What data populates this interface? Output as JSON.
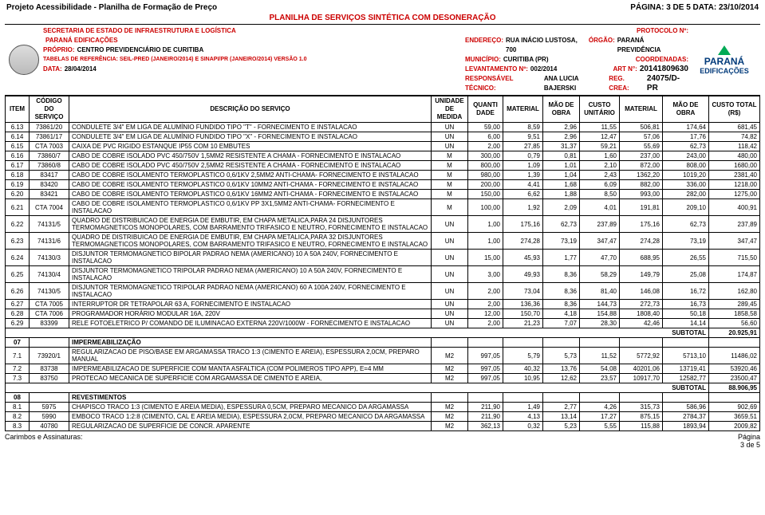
{
  "page_meta": {
    "project_title": "Projeto Acessibilidade - Planilha de Formação de Preço",
    "page_label": "PÁGINA: 3 DE 5  DATA: 23/10/2014",
    "sheet_title": "PLANILHA DE SERVIÇOS SINTÉTICA COM DESONERAÇÃO"
  },
  "header": {
    "secretaria": "SECRETARIA DE ESTADO DE INFRAESTRUTURA E LOGÍSTICA",
    "parana_edif": "PARANÁ EDIFICAÇÕES",
    "proprio_lbl": "PRÓPRIO:",
    "proprio_val": "CENTRO PREVIDENCIÁRIO DE CURITIBA",
    "tabelas": "TABELAS DE REFERÊNCIA: SEIL-PRED (JANEIRO/2014) E SINAPI/PR (JANEIRO/2014) VERSÃO 1.0",
    "data_lbl": "DATA:",
    "data_val": "28/04/2014",
    "protocolo": "PROTOCOLO Nº:",
    "endereco_lbl": "ENDEREÇO:",
    "endereco_val": "RUA INÁCIO LUSTOSA, 700",
    "orgao_lbl": "ÓRGÃO:",
    "orgao_val": "PARANÁ PREVIDÊNCIA",
    "municipio_lbl": "MUNICÍPIO:",
    "municipio_val": "CURITIBA (PR)",
    "coord_lbl": "COORDENADAS:",
    "lev_lbl": "LEVANTAMENTO Nº:",
    "lev_val": "002/2014",
    "art_lbl": "ART N°:",
    "art_val": "20141809630",
    "resp_lbl": "RESPONSÁVEL TÉCNICO:",
    "resp_val": "ANA LUCIA BAJERSKI",
    "reg_lbl": "REG. CREA:",
    "reg_val": "24075/D-PR",
    "logo_main": "PARANÁ",
    "logo_sub": "EDIFICAÇÕES"
  },
  "columns": {
    "item": "ITEM",
    "codigo": "CÓDIGO DO SERVIÇO",
    "descricao": "DESCRIÇÃO DO SERVIÇO",
    "unidade": "UNIDADE DE MEDIDA",
    "quanti": "QUANTI DADE",
    "material": "MATERIAL",
    "mao_obra": "MÃO DE OBRA",
    "custo_unit": "CUSTO UNITÁRIO",
    "material2": "MATERIAL",
    "mao_obra2": "MÃO DE OBRA",
    "custo_total": "CUSTO TOTAL (R$)"
  },
  "rows": [
    {
      "item": "6.13",
      "cod": "73861/20",
      "desc": "CONDULETE 3/4\" EM LIGA DE ALUMÍNIO FUNDIDO TIPO \"T\" - FORNECIMENTO E INSTALACAO",
      "un": "UN",
      "q": "59,00",
      "mat": "8,59",
      "mo": "2,96",
      "cu": "11,55",
      "mat2": "506,81",
      "mo2": "174,64",
      "tot": "681,45"
    },
    {
      "item": "6.14",
      "cod": "73861/17",
      "desc": "CONDULETE 3/4\" EM LIGA DE ALUMÍNIO FUNDIDO TIPO \"X\" - FORNECIMENTO E INSTALACAO",
      "un": "UN",
      "q": "6,00",
      "mat": "9,51",
      "mo": "2,96",
      "cu": "12,47",
      "mat2": "57,06",
      "mo2": "17,76",
      "tot": "74,82"
    },
    {
      "item": "6.15",
      "cod": "CTA 7003",
      "desc": "CAIXA DE PVC RIGIDO ESTANQUE IP55 COM 10 EMBUTES",
      "un": "UN",
      "q": "2,00",
      "mat": "27,85",
      "mo": "31,37",
      "cu": "59,21",
      "mat2": "55,69",
      "mo2": "62,73",
      "tot": "118,42"
    },
    {
      "item": "6.16",
      "cod": "73860/7",
      "desc": "CABO DE COBRE ISOLADO PVC 450/750V 1,5MM2 RESISTENTE A CHAMA - FORNECIMENTO E INSTALACAO",
      "un": "M",
      "q": "300,00",
      "mat": "0,79",
      "mo": "0,81",
      "cu": "1,60",
      "mat2": "237,00",
      "mo2": "243,00",
      "tot": "480,00"
    },
    {
      "item": "6.17",
      "cod": "73860/8",
      "desc": "CABO DE COBRE ISOLADO PVC 450/750V 2,5MM2 RESISTENTE A CHAMA - FORNECIMENTO E INSTALACAO",
      "un": "M",
      "q": "800,00",
      "mat": "1,09",
      "mo": "1,01",
      "cu": "2,10",
      "mat2": "872,00",
      "mo2": "808,00",
      "tot": "1680,00"
    },
    {
      "item": "6.18",
      "cod": "83417",
      "desc": "CABO DE COBRE ISOLAMENTO TERMOPLASTICO 0,6/1KV 2,5MM2 ANTI-CHAMA- FORNECIMENTO E INSTALACAO",
      "un": "M",
      "q": "980,00",
      "mat": "1,39",
      "mo": "1,04",
      "cu": "2,43",
      "mat2": "1362,20",
      "mo2": "1019,20",
      "tot": "2381,40"
    },
    {
      "item": "6.19",
      "cod": "83420",
      "desc": "CABO DE COBRE ISOLAMENTO TERMOPLASTICO 0,6/1KV 10MM2 ANTI-CHAMA - FORNECIMENTO E INSTALACAO",
      "un": "M",
      "q": "200,00",
      "mat": "4,41",
      "mo": "1,68",
      "cu": "6,09",
      "mat2": "882,00",
      "mo2": "336,00",
      "tot": "1218,00"
    },
    {
      "item": "6.20",
      "cod": "83421",
      "desc": "CABO DE COBRE ISOLAMENTO TERMOPLASTICO 0,6/1KV 16MM2 ANTI-CHAMA - FORNECIMENTO E INSTALACAO",
      "un": "M",
      "q": "150,00",
      "mat": "6,62",
      "mo": "1,88",
      "cu": "8,50",
      "mat2": "993,00",
      "mo2": "282,00",
      "tot": "1275,00"
    },
    {
      "item": "6.21",
      "cod": "CTA 7004",
      "desc": "CABO DE COBRE ISOLAMENTO TERMOPLASTICO 0,6/1KV PP 3X1,5MM2 ANTI-CHAMA- FORNECIMENTO E INSTALACAO",
      "un": "M",
      "q": "100,00",
      "mat": "1,92",
      "mo": "2,09",
      "cu": "4,01",
      "mat2": "191,81",
      "mo2": "209,10",
      "tot": "400,91"
    },
    {
      "item": "6.22",
      "cod": "74131/5",
      "desc": "QUADRO DE DISTRIBUICAO DE ENERGIA DE EMBUTIR, EM CHAPA METALICA,PARA 24 DISJUNTORES TERMOMAGNETICOS MONOPOLARES, COM BARRAMENTO TRIFASICO E NEUTRO, FORNECIMENTO E INSTALACAO",
      "un": "UN",
      "q": "1,00",
      "mat": "175,16",
      "mo": "62,73",
      "cu": "237,89",
      "mat2": "175,16",
      "mo2": "62,73",
      "tot": "237,89"
    },
    {
      "item": "6.23",
      "cod": "74131/6",
      "desc": "QUADRO DE DISTRIBUICAO DE ENERGIA DE EMBUTIR, EM CHAPA METALICA,PARA 32 DISJUNTORES TERMOMAGNETICOS MONOPOLARES, COM BARRAMENTO TRIFASICO E NEUTRO, FORNECIMENTO E INSTALACAO",
      "un": "UN",
      "q": "1,00",
      "mat": "274,28",
      "mo": "73,19",
      "cu": "347,47",
      "mat2": "274,28",
      "mo2": "73,19",
      "tot": "347,47"
    },
    {
      "item": "6.24",
      "cod": "74130/3",
      "desc": "DISJUNTOR TERMOMAGNETICO BIPOLAR PADRAO NEMA (AMERICANO) 10 A 50A 240V, FORNECIMENTO E INSTALACAO",
      "un": "UN",
      "q": "15,00",
      "mat": "45,93",
      "mo": "1,77",
      "cu": "47,70",
      "mat2": "688,95",
      "mo2": "26,55",
      "tot": "715,50"
    },
    {
      "item": "6.25",
      "cod": "74130/4",
      "desc": "DISJUNTOR TERMOMAGNETICO TRIPOLAR PADRAO NEMA (AMERICANO) 10 A 50A 240V, FORNECIMENTO E INSTALACAO",
      "un": "UN",
      "q": "3,00",
      "mat": "49,93",
      "mo": "8,36",
      "cu": "58,29",
      "mat2": "149,79",
      "mo2": "25,08",
      "tot": "174,87"
    },
    {
      "item": "6.26",
      "cod": "74130/5",
      "desc": "DISJUNTOR TERMOMAGNETICO TRIPOLAR PADRAO NEMA (AMERICANO) 60 A 100A 240V, FORNECIMENTO E INSTALACAO",
      "un": "UN",
      "q": "2,00",
      "mat": "73,04",
      "mo": "8,36",
      "cu": "81,40",
      "mat2": "146,08",
      "mo2": "16,72",
      "tot": "162,80"
    },
    {
      "item": "6.27",
      "cod": "CTA 7005",
      "desc": "INTERRUPTOR DR TETRAPOLAR  63 A, FORNECIMENTO E INSTALACAO",
      "un": "UN",
      "q": "2,00",
      "mat": "136,36",
      "mo": "8,36",
      "cu": "144,73",
      "mat2": "272,73",
      "mo2": "16,73",
      "tot": "289,45"
    },
    {
      "item": "6.28",
      "cod": "CTA 7006",
      "desc": "PROGRAMADOR HORÁRIO MODULAR 16A, 220V",
      "un": "UN",
      "q": "12,00",
      "mat": "150,70",
      "mo": "4,18",
      "cu": "154,88",
      "mat2": "1808,40",
      "mo2": "50,18",
      "tot": "1858,58"
    },
    {
      "item": "6.29",
      "cod": "83399",
      "desc": "RELE FOTOELETRICO P/ COMANDO DE ILUMINACAO EXTERNA 220V/1000W - FORNECIMENTO E INSTALACAO",
      "un": "UN",
      "q": "2,00",
      "mat": "21,23",
      "mo": "7,07",
      "cu": "28,30",
      "mat2": "42,46",
      "mo2": "14,14",
      "tot": "56,60"
    }
  ],
  "subtotal6": {
    "label": "SUBTOTAL",
    "value": "20.925,91"
  },
  "section07": {
    "code": "07",
    "label": "IMPERMEABILIZAÇÃO"
  },
  "rows7": [
    {
      "item": "7.1",
      "cod": "73920/1",
      "desc": "REGULARIZACAO DE PISO/BASE EM ARGAMASSA TRACO 1:3 (CIMENTO E AREIA), ESPESSURA 2,0CM, PREPARO MANUAL",
      "un": "M2",
      "q": "997,05",
      "mat": "5,79",
      "mo": "5,73",
      "cu": "11,52",
      "mat2": "5772,92",
      "mo2": "5713,10",
      "tot": "11486,02"
    },
    {
      "item": "7.2",
      "cod": "83738",
      "desc": "IMPERMEABILIZACAO DE SUPERFICIE COM MANTA ASFALTICA (COM POLIMEROS TIPO APP), E=4 MM",
      "un": "M2",
      "q": "997,05",
      "mat": "40,32",
      "mo": "13,76",
      "cu": "54,08",
      "mat2": "40201,06",
      "mo2": "13719,41",
      "tot": "53920,46"
    },
    {
      "item": "7.3",
      "cod": "83750",
      "desc": "PROTECAO MECANICA DE SUPERFICIE COM ARGAMASSA DE CIMENTO E AREIA,",
      "un": "M2",
      "q": "997,05",
      "mat": "10,95",
      "mo": "12,62",
      "cu": "23,57",
      "mat2": "10917,70",
      "mo2": "12582,77",
      "tot": "23500,47"
    }
  ],
  "subtotal7": {
    "label": "SUBTOTAL",
    "value": "88.906,95"
  },
  "section08": {
    "code": "08",
    "label": "REVESTIMENTOS"
  },
  "rows8": [
    {
      "item": "8.1",
      "cod": "5975",
      "desc": "CHAPISCO TRACO 1:3 (CIMENTO E AREIA MEDIA), ESPESSURA 0,5CM, PREPARO MECANICO DA ARGAMASSA",
      "un": "M2",
      "q": "211,90",
      "mat": "1,49",
      "mo": "2,77",
      "cu": "4,26",
      "mat2": "315,73",
      "mo2": "586,96",
      "tot": "902,69"
    },
    {
      "item": "8.2",
      "cod": "5990",
      "desc": "EMBOCO TRACO 1:2:8 (CIMENTO, CAL E AREIA MEDIA), ESPESSURA 2,0CM, PREPARO MECANICO DA ARGAMASSA",
      "un": "M2",
      "q": "211,90",
      "mat": "4,13",
      "mo": "13,14",
      "cu": "17,27",
      "mat2": "875,15",
      "mo2": "2784,37",
      "tot": "3659,51"
    },
    {
      "item": "8.3",
      "cod": "40780",
      "desc": "REGULARIZACAO DE SUPERFICIE DE CONCR. APARENTE",
      "un": "M2",
      "q": "362,13",
      "mat": "0,32",
      "mo": "5,23",
      "cu": "5,55",
      "mat2": "115,88",
      "mo2": "1893,94",
      "tot": "2009,82"
    }
  ],
  "footer": {
    "left": "Carimbos e Assinaturas:",
    "right_top": "Página",
    "right_bot": "3 de 5"
  },
  "col_widths": {
    "item": "30px",
    "cod": "50px",
    "desc": "auto",
    "un": "46px",
    "q": "44px",
    "mat": "50px",
    "mo": "46px",
    "cu": "50px",
    "mat2": "54px",
    "mo2": "58px",
    "tot": "64px"
  }
}
